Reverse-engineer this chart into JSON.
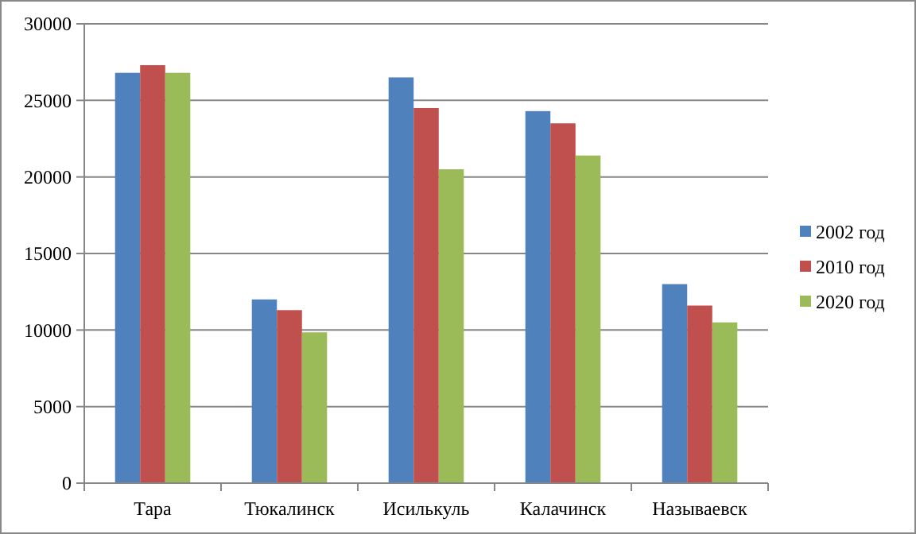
{
  "chart_data": {
    "type": "bar",
    "categories": [
      "Тара",
      "Тюкалинск",
      "Исилькуль",
      "Калачинск",
      "Называевск"
    ],
    "series": [
      {
        "name": "2002 год",
        "color": "#4f81bd",
        "values": [
          26800,
          12000,
          26500,
          24300,
          13000
        ]
      },
      {
        "name": "2010 год",
        "color": "#c0504d",
        "values": [
          27300,
          11300,
          24500,
          23500,
          11600
        ]
      },
      {
        "name": "2020 год",
        "color": "#9bbb59",
        "values": [
          26800,
          9850,
          20500,
          21400,
          10500
        ]
      }
    ],
    "ylim": [
      0,
      30000
    ],
    "yticks": [
      0,
      5000,
      10000,
      15000,
      20000,
      25000,
      30000
    ],
    "grid": "y",
    "legend": "right"
  }
}
